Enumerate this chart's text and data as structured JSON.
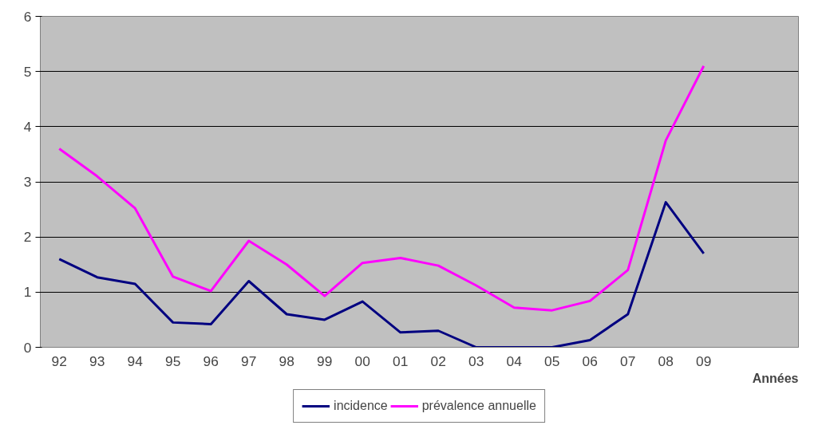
{
  "chart_data": {
    "type": "line",
    "xlabel": "Années",
    "categories": [
      "92",
      "93",
      "94",
      "95",
      "96",
      "97",
      "98",
      "99",
      "00",
      "01",
      "02",
      "03",
      "04",
      "05",
      "06",
      "07",
      "08",
      "09",
      null,
      null
    ],
    "series": [
      {
        "name": "incidence",
        "color": "#000080",
        "values": [
          1.6,
          1.27,
          1.15,
          0.45,
          0.42,
          1.2,
          0.6,
          0.5,
          0.83,
          0.27,
          0.3,
          0,
          0,
          0,
          0.13,
          0.6,
          2.63,
          1.7,
          null,
          null
        ]
      },
      {
        "name": "prévalence annuelle",
        "color": "#ff00ff",
        "values": [
          3.6,
          3.1,
          2.52,
          1.28,
          1.02,
          1.93,
          1.5,
          0.93,
          1.53,
          1.62,
          1.48,
          1.12,
          0.72,
          0.67,
          0.84,
          1.4,
          3.75,
          5.1,
          null,
          null
        ]
      }
    ],
    "ylim": [
      0,
      6
    ],
    "yticks": [
      0,
      1,
      2,
      3,
      4,
      5,
      6
    ],
    "grid": "y",
    "legend": "bottom",
    "marker": "none",
    "line_style": "solid"
  }
}
